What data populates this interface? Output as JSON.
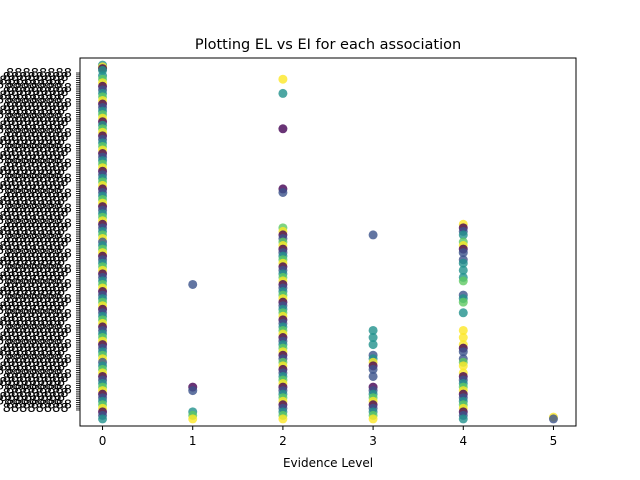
{
  "chart_data": {
    "type": "scatter",
    "title": "Plotting EL vs EI for each association",
    "xlabel": "Evidence Level",
    "ylabel": "",
    "x_ticks": [
      "0",
      "1",
      "2",
      "3",
      "4",
      "5"
    ],
    "xlim": [
      -0.25,
      5.25
    ],
    "ylim": [
      -0.02,
      1.02
    ],
    "grid": false,
    "legend": "none",
    "y_tick_labels_note": "hundreds of overlapping unreadable categorical tick labels",
    "y_tick_count": 180,
    "colormap": [
      "#440154",
      "#3b528b",
      "#21918c",
      "#5ec962",
      "#fde725"
    ],
    "point_alpha": 0.8,
    "series": [
      {
        "x": 0,
        "y": [
          1.0,
          0.995,
          0.99,
          0.985,
          0.97,
          0.96,
          0.95,
          0.94,
          0.93,
          0.92,
          0.91,
          0.9,
          0.89,
          0.88,
          0.87,
          0.86,
          0.85,
          0.84,
          0.83,
          0.82,
          0.81,
          0.8,
          0.79,
          0.78,
          0.77,
          0.76,
          0.75,
          0.74,
          0.73,
          0.72,
          0.71,
          0.7,
          0.69,
          0.68,
          0.67,
          0.66,
          0.65,
          0.64,
          0.63,
          0.62,
          0.61,
          0.6,
          0.59,
          0.58,
          0.57,
          0.56,
          0.55,
          0.54,
          0.53,
          0.52,
          0.51,
          0.5,
          0.49,
          0.48,
          0.47,
          0.46,
          0.45,
          0.44,
          0.43,
          0.42,
          0.41,
          0.4,
          0.39,
          0.38,
          0.37,
          0.36,
          0.35,
          0.34,
          0.33,
          0.32,
          0.31,
          0.3,
          0.29,
          0.28,
          0.27,
          0.26,
          0.25,
          0.24,
          0.23,
          0.22,
          0.21,
          0.2,
          0.19,
          0.18,
          0.17,
          0.16,
          0.15,
          0.14,
          0.13,
          0.12,
          0.11,
          0.1,
          0.09,
          0.08,
          0.07,
          0.06,
          0.05,
          0.04,
          0.03,
          0.02,
          0.01,
          0.0
        ]
      },
      {
        "x": 1,
        "y": [
          0.38,
          0.09,
          0.08,
          0.02,
          0.01,
          0.0
        ]
      },
      {
        "x": 2,
        "y": [
          0.96,
          0.92,
          0.82,
          0.65,
          0.64,
          0.54,
          0.53,
          0.52,
          0.51,
          0.5,
          0.49,
          0.48,
          0.47,
          0.46,
          0.45,
          0.44,
          0.43,
          0.42,
          0.41,
          0.4,
          0.39,
          0.38,
          0.37,
          0.36,
          0.35,
          0.34,
          0.33,
          0.32,
          0.31,
          0.3,
          0.29,
          0.28,
          0.27,
          0.26,
          0.25,
          0.24,
          0.23,
          0.22,
          0.21,
          0.2,
          0.19,
          0.18,
          0.17,
          0.16,
          0.15,
          0.14,
          0.13,
          0.12,
          0.11,
          0.1,
          0.09,
          0.08,
          0.07,
          0.06,
          0.05,
          0.04,
          0.03,
          0.02,
          0.01,
          0.0
        ]
      },
      {
        "x": 3,
        "y": [
          0.52,
          0.25,
          0.23,
          0.21,
          0.18,
          0.17,
          0.16,
          0.15,
          0.14,
          0.12,
          0.09,
          0.08,
          0.07,
          0.06,
          0.05,
          0.04,
          0.03,
          0.02,
          0.01,
          0.0
        ]
      },
      {
        "x": 4,
        "y": [
          0.55,
          0.54,
          0.53,
          0.52,
          0.5,
          0.49,
          0.48,
          0.47,
          0.45,
          0.44,
          0.42,
          0.4,
          0.39,
          0.35,
          0.34,
          0.33,
          0.3,
          0.25,
          0.23,
          0.21,
          0.2,
          0.19,
          0.17,
          0.16,
          0.15,
          0.13,
          0.12,
          0.11,
          0.1,
          0.09,
          0.08,
          0.07,
          0.06,
          0.05,
          0.04,
          0.03,
          0.02,
          0.01,
          0.0
        ]
      },
      {
        "x": 5,
        "y": [
          0.005,
          0.0
        ]
      }
    ]
  }
}
